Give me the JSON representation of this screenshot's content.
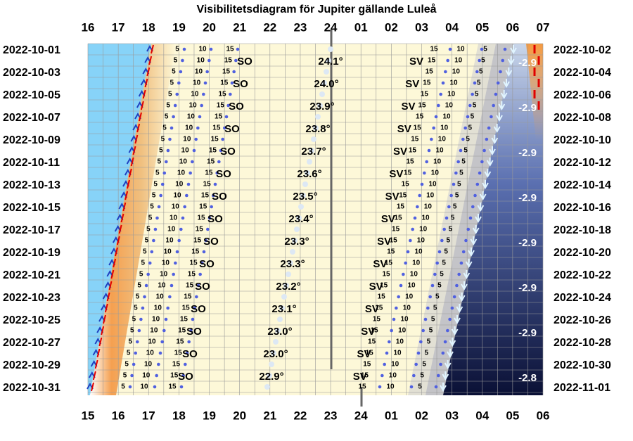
{
  "title": "Visibilitetsdiagram för Jupiter gällande Luleå",
  "top_hours": [
    "16",
    "17",
    "18",
    "19",
    "20",
    "21",
    "22",
    "23",
    "24",
    "01",
    "02",
    "03",
    "04",
    "05",
    "06",
    "07"
  ],
  "bottom_hours": [
    "15",
    "16",
    "17",
    "18",
    "19",
    "20",
    "21",
    "22",
    "23",
    "24",
    "01",
    "02",
    "03",
    "04",
    "05",
    "06"
  ],
  "left_dates": [
    "2022-10-01",
    "2022-10-03",
    "2022-10-05",
    "2022-10-07",
    "2022-10-09",
    "2022-10-11",
    "2022-10-13",
    "2022-10-15",
    "2022-10-17",
    "2022-10-19",
    "2022-10-21",
    "2022-10-23",
    "2022-10-25",
    "2022-10-27",
    "2022-10-29",
    "2022-10-31"
  ],
  "right_dates": [
    "2022-10-02",
    "2022-10-04",
    "2022-10-06",
    "2022-10-08",
    "2022-10-10",
    "2022-10-12",
    "2022-10-14",
    "2022-10-16",
    "2022-10-18",
    "2022-10-20",
    "2022-10-22",
    "2022-10-24",
    "2022-10-26",
    "2022-10-28",
    "2022-10-30",
    "2022-11-01"
  ],
  "max_altitudes": [
    "24.1°",
    "24.0°",
    "23.9°",
    "23.8°",
    "23.7°",
    "23.6°",
    "23.5°",
    "23.4°",
    "23.3°",
    "23.3°",
    "23.2°",
    "23.1°",
    "23.0°",
    "23.0°",
    "22.9°"
  ],
  "magnitudes": [
    "-2.9",
    "-2.9",
    "-2.9",
    "-2.9",
    "-2.9",
    "-2.9",
    "-2.9",
    "-2.8"
  ],
  "rise_direction": "SO",
  "set_direction": "SV",
  "altitude_contours": [
    "5",
    "10",
    "15"
  ]
}
